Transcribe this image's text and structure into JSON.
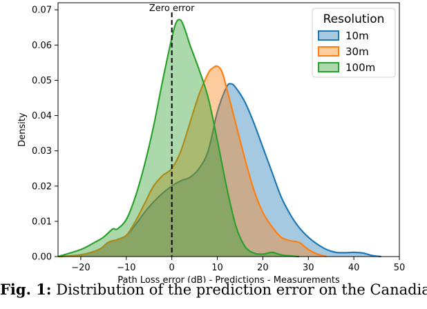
{
  "chart_data": {
    "type": "area",
    "title": "",
    "xlabel": "Path Loss error (dB) - Predictions - Measurements",
    "ylabel": "Density",
    "xlim": [
      -25,
      50
    ],
    "ylim": [
      0,
      0.072
    ],
    "xticks": [
      -20,
      -10,
      0,
      10,
      20,
      30,
      40,
      50
    ],
    "yticks": [
      0.0,
      0.01,
      0.02,
      0.03,
      0.04,
      0.05,
      0.06,
      0.07
    ],
    "xtick_labels": [
      "−20",
      "−10",
      "0",
      "10",
      "20",
      "30",
      "40",
      "50"
    ],
    "ytick_labels": [
      "0.00",
      "0.01",
      "0.02",
      "0.03",
      "0.04",
      "0.05",
      "0.06",
      "0.07"
    ],
    "grid": false,
    "legend": {
      "title": "Resolution",
      "position": "top-right"
    },
    "annotation": {
      "text": "Zero error",
      "x": 0
    },
    "series": [
      {
        "name": "10m",
        "color": "#1f77b4",
        "x": [
          -25,
          -20,
          -16,
          -14,
          -12,
          -10,
          -8,
          -6,
          -4,
          -2,
          0,
          2,
          4,
          6,
          8,
          10,
          12,
          13,
          14,
          16,
          18,
          20,
          22,
          24,
          26,
          28,
          30,
          32,
          34,
          36,
          38,
          40,
          42,
          44,
          46
        ],
        "y": [
          0.0,
          0.0005,
          0.002,
          0.004,
          0.0048,
          0.006,
          0.009,
          0.0125,
          0.0155,
          0.018,
          0.02,
          0.0215,
          0.0225,
          0.025,
          0.03,
          0.041,
          0.048,
          0.049,
          0.048,
          0.044,
          0.038,
          0.031,
          0.024,
          0.017,
          0.012,
          0.0082,
          0.0055,
          0.0035,
          0.002,
          0.0012,
          0.0011,
          0.0012,
          0.001,
          0.0003,
          0.0
        ]
      },
      {
        "name": "30m",
        "color": "#ff7f0e",
        "x": [
          -25,
          -20,
          -16,
          -14,
          -12,
          -10,
          -8,
          -6,
          -4,
          -2,
          0,
          2,
          4,
          6,
          8,
          9,
          10,
          11,
          12,
          14,
          16,
          18,
          20,
          22,
          24,
          26,
          28,
          30,
          32,
          34
        ],
        "y": [
          0.0,
          0.0005,
          0.002,
          0.004,
          0.0048,
          0.006,
          0.01,
          0.015,
          0.02,
          0.023,
          0.025,
          0.03,
          0.038,
          0.046,
          0.052,
          0.0535,
          0.054,
          0.0525,
          0.048,
          0.038,
          0.028,
          0.019,
          0.0125,
          0.0085,
          0.0055,
          0.0045,
          0.004,
          0.002,
          0.0007,
          0.0
        ]
      },
      {
        "name": "100m",
        "color": "#2ca02c",
        "x": [
          -25,
          -20,
          -17,
          -15,
          -13,
          -12,
          -10,
          -8,
          -6,
          -4,
          -2,
          0,
          1,
          2,
          3,
          4,
          6,
          8,
          10,
          12,
          14,
          16,
          18,
          20,
          22,
          24,
          26,
          28
        ],
        "y": [
          0.0,
          0.002,
          0.004,
          0.0055,
          0.0078,
          0.0078,
          0.0105,
          0.017,
          0.026,
          0.037,
          0.05,
          0.062,
          0.0665,
          0.067,
          0.064,
          0.06,
          0.053,
          0.045,
          0.033,
          0.02,
          0.009,
          0.003,
          0.001,
          0.0007,
          0.0012,
          0.0005,
          0.0002,
          0.0
        ]
      }
    ]
  },
  "caption": {
    "label": "Fig. 1:",
    "text": " Distribution of the prediction error on the Canadian"
  }
}
